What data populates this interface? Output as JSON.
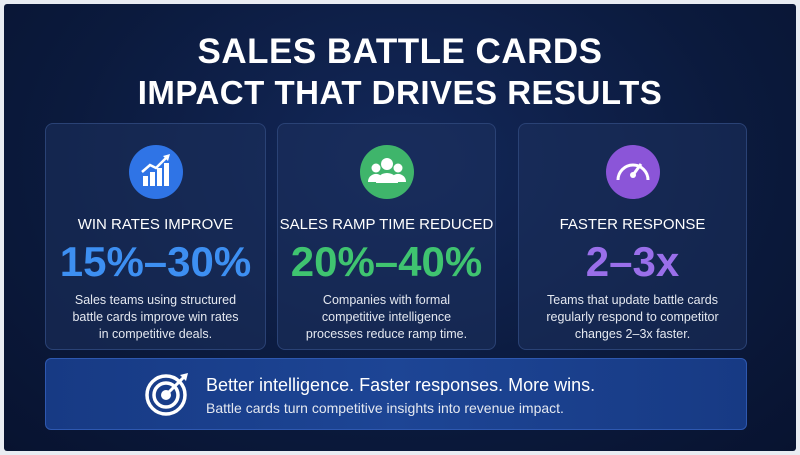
{
  "header": {
    "title": "SALES BATTLE CARDS",
    "subtitle": "IMPACT THAT DRIVES RESULTS"
  },
  "cards": [
    {
      "label": "WIN RATES IMPROVE",
      "stat": "15%–30%",
      "description": [
        "Sales teams using structured",
        "battle cards improve win rates",
        "in competitive deals."
      ]
    },
    {
      "label": "SALES RAMP TIME REDUCED",
      "stat": "20%–40%",
      "description": [
        "Companies with formal",
        "competitive intelligence",
        "processes reduce ramp time."
      ]
    },
    {
      "label": "FASTER RESPONSE",
      "stat": "2–3x",
      "description": [
        "Teams that update battle cards",
        "regularly respond to competitor",
        "changes 2–3x faster."
      ]
    }
  ],
  "footer": {
    "headline": "Better intelligence. Faster responses. More wins.",
    "text": "Battle cards turn competitive insights into revenue impact."
  }
}
